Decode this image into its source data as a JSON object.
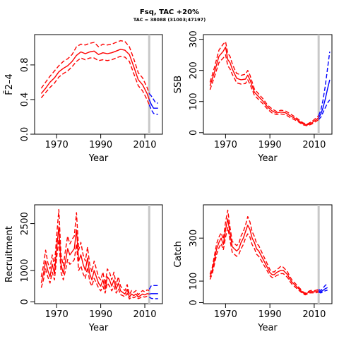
{
  "figure": {
    "title": "Fsq, TAC +20%",
    "subtitle": "TAC = 38088 (31003;47197)"
  },
  "colors": {
    "history": "#ff0000",
    "projection": "#0000ff",
    "vline": "#c8c8c8",
    "axis": "#000000"
  },
  "chart_data": [
    {
      "type": "line",
      "ylabel": "F̄2–4",
      "xlabel": "Year",
      "xlim": [
        1960,
        2018
      ],
      "ylim": [
        0,
        1.15
      ],
      "xticks": [
        1970,
        1990,
        2010
      ],
      "yticks": [
        0,
        0.4,
        0.8
      ],
      "ytick_labels": [
        "0.0",
        "0.4",
        "0.8"
      ],
      "vline": 2012,
      "history": {
        "x": [
          1963,
          1965,
          1967,
          1969,
          1971,
          1973,
          1975,
          1977,
          1979,
          1981,
          1983,
          1985,
          1987,
          1989,
          1991,
          1993,
          1995,
          1997,
          1999,
          2001,
          2003,
          2005,
          2007,
          2009,
          2011,
          2012
        ],
        "mid": [
          0.47,
          0.53,
          0.6,
          0.65,
          0.72,
          0.76,
          0.79,
          0.84,
          0.91,
          0.95,
          0.93,
          0.95,
          0.96,
          0.92,
          0.94,
          0.93,
          0.94,
          0.96,
          0.98,
          0.97,
          0.92,
          0.78,
          0.63,
          0.57,
          0.47,
          0.4
        ],
        "lo": [
          0.42,
          0.48,
          0.54,
          0.59,
          0.66,
          0.7,
          0.73,
          0.78,
          0.84,
          0.88,
          0.86,
          0.88,
          0.88,
          0.85,
          0.86,
          0.85,
          0.86,
          0.88,
          0.9,
          0.89,
          0.84,
          0.7,
          0.56,
          0.5,
          0.4,
          0.34
        ],
        "hi": [
          0.53,
          0.6,
          0.67,
          0.73,
          0.79,
          0.84,
          0.87,
          0.92,
          1.01,
          1.04,
          1.03,
          1.05,
          1.06,
          1.01,
          1.04,
          1.03,
          1.04,
          1.06,
          1.08,
          1.07,
          1.01,
          0.87,
          0.71,
          0.65,
          0.54,
          0.47
        ]
      },
      "projection": {
        "x": [
          2012,
          2013,
          2014,
          2015,
          2016
        ],
        "mid": [
          0.4,
          0.34,
          0.3,
          0.3,
          0.3
        ],
        "lo": [
          0.34,
          0.28,
          0.24,
          0.23,
          0.23
        ],
        "hi": [
          0.47,
          0.44,
          0.4,
          0.36,
          0.36
        ]
      }
    },
    {
      "type": "line",
      "ylabel": "SSB",
      "xlabel": "Year",
      "xlim": [
        1960,
        2018
      ],
      "ylim": [
        -5,
        315
      ],
      "xticks": [
        1970,
        1990,
        2010
      ],
      "yticks": [
        0,
        100,
        200,
        300
      ],
      "ytick_labels": [
        "0",
        "100",
        "200",
        "300"
      ],
      "vline": 2012,
      "history": {
        "x": [
          1963,
          1965,
          1967,
          1969,
          1970,
          1971,
          1972,
          1973,
          1974,
          1975,
          1976,
          1977,
          1979,
          1980,
          1981,
          1983,
          1985,
          1987,
          1989,
          1991,
          1993,
          1995,
          1997,
          1999,
          2001,
          2003,
          2005,
          2007,
          2009,
          2011,
          2012
        ],
        "mid": [
          150,
          195,
          245,
          262,
          275,
          235,
          225,
          205,
          190,
          175,
          172,
          170,
          172,
          185,
          170,
          130,
          115,
          100,
          82,
          70,
          63,
          66,
          64,
          55,
          47,
          38,
          28,
          25,
          32,
          42,
          48
        ],
        "lo": [
          138,
          180,
          225,
          240,
          250,
          215,
          205,
          188,
          175,
          160,
          158,
          156,
          158,
          170,
          156,
          120,
          106,
          92,
          75,
          63,
          58,
          60,
          58,
          49,
          42,
          34,
          25,
          22,
          28,
          37,
          42
        ],
        "hi": [
          162,
          210,
          265,
          285,
          292,
          255,
          245,
          222,
          205,
          190,
          188,
          184,
          188,
          200,
          185,
          140,
          124,
          108,
          88,
          76,
          68,
          72,
          70,
          61,
          52,
          42,
          31,
          28,
          36,
          48,
          55
        ]
      },
      "projection": {
        "x": [
          2012,
          2013,
          2014,
          2015,
          2016,
          2017
        ],
        "mid": [
          48,
          60,
          80,
          108,
          140,
          170
        ],
        "lo": [
          42,
          50,
          65,
          80,
          95,
          105
        ],
        "hi": [
          55,
          72,
          105,
          150,
          205,
          260
        ]
      }
    },
    {
      "type": "line",
      "ylabel": "Recruitment",
      "xlabel": "Year",
      "xlim": [
        1960,
        2018
      ],
      "ylim": [
        -60,
        3100
      ],
      "xticks": [
        1970,
        1990,
        2010
      ],
      "yticks": [
        0,
        1000,
        2500
      ],
      "ytick_labels": [
        "0",
        "1000",
        "2500"
      ],
      "vline": 2012,
      "history": {
        "x": [
          1963,
          1964,
          1965,
          1966,
          1967,
          1968,
          1969,
          1970,
          1971,
          1972,
          1973,
          1974,
          1975,
          1976,
          1977,
          1978,
          1979,
          1980,
          1981,
          1982,
          1983,
          1984,
          1985,
          1986,
          1987,
          1988,
          1989,
          1990,
          1991,
          1992,
          1993,
          1994,
          1995,
          1996,
          1997,
          1998,
          1999,
          2000,
          2001,
          2002,
          2003,
          2004,
          2005,
          2006,
          2007,
          2008,
          2009,
          2010,
          2011,
          2012
        ],
        "mid": [
          600,
          900,
          1300,
          1000,
          800,
          1200,
          900,
          1700,
          2400,
          1200,
          900,
          1300,
          1700,
          1500,
          1600,
          1700,
          2300,
          1300,
          1500,
          1200,
          1000,
          1400,
          900,
          700,
          1000,
          800,
          600,
          500,
          700,
          400,
          800,
          700,
          500,
          700,
          400,
          600,
          350,
          300,
          250,
          400,
          150,
          250,
          200,
          250,
          150,
          200,
          250,
          220,
          260,
          250
        ],
        "lo": [
          450,
          700,
          1050,
          800,
          600,
          950,
          700,
          1400,
          2000,
          950,
          700,
          1000,
          1350,
          1200,
          1250,
          1350,
          1850,
          1000,
          1150,
          900,
          750,
          1100,
          650,
          500,
          750,
          600,
          450,
          350,
          500,
          280,
          600,
          500,
          350,
          500,
          280,
          420,
          230,
          200,
          160,
          270,
          90,
          160,
          130,
          170,
          100,
          130,
          170,
          150,
          180,
          170
        ],
        "hi": [
          800,
          1150,
          1650,
          1250,
          1050,
          1500,
          1150,
          2100,
          2950,
          1500,
          1150,
          1650,
          2100,
          1850,
          2000,
          2100,
          2850,
          1650,
          1900,
          1500,
          1300,
          1750,
          1200,
          950,
          1300,
          1050,
          800,
          700,
          950,
          550,
          1050,
          950,
          700,
          950,
          550,
          800,
          500,
          420,
          360,
          550,
          230,
          360,
          300,
          360,
          220,
          300,
          360,
          320,
          380,
          360
        ]
      },
      "projection": {
        "x": [
          2012,
          2013,
          2014,
          2015,
          2016
        ],
        "mid": [
          250,
          260,
          260,
          260,
          260
        ],
        "lo": [
          150,
          110,
          100,
          100,
          100
        ],
        "hi": [
          400,
          520,
          520,
          520,
          520
        ]
      }
    },
    {
      "type": "line",
      "ylabel": "Catch",
      "xlabel": "Year",
      "xlim": [
        1960,
        2018
      ],
      "ylim": [
        -5,
        455
      ],
      "xticks": [
        1970,
        1990,
        2010
      ],
      "yticks": [
        0,
        100,
        300
      ],
      "ytick_labels": [
        "0",
        "100",
        "300"
      ],
      "vline": 2012,
      "history": {
        "x": [
          1963,
          1964,
          1965,
          1966,
          1967,
          1968,
          1969,
          1970,
          1971,
          1972,
          1973,
          1974,
          1975,
          1976,
          1977,
          1978,
          1979,
          1980,
          1981,
          1982,
          1983,
          1984,
          1985,
          1986,
          1987,
          1988,
          1989,
          1990,
          1991,
          1992,
          1993,
          1994,
          1995,
          1996,
          1997,
          1998,
          1999,
          2000,
          2001,
          2002,
          2003,
          2004,
          2005,
          2006,
          2007,
          2008,
          2009,
          2010,
          2011,
          2012
        ],
        "mid": [
          120,
          150,
          200,
          250,
          280,
          300,
          270,
          340,
          390,
          320,
          260,
          250,
          240,
          250,
          280,
          300,
          330,
          360,
          340,
          300,
          280,
          250,
          240,
          220,
          200,
          180,
          160,
          140,
          130,
          130,
          140,
          145,
          150,
          150,
          140,
          130,
          110,
          95,
          85,
          75,
          65,
          55,
          45,
          40,
          45,
          50,
          52,
          50,
          52,
          55
        ],
        "lo": [
          108,
          135,
          180,
          225,
          255,
          275,
          245,
          305,
          350,
          290,
          235,
          225,
          215,
          225,
          250,
          270,
          300,
          320,
          305,
          270,
          252,
          225,
          215,
          198,
          180,
          162,
          144,
          126,
          117,
          117,
          126,
          130,
          135,
          135,
          126,
          117,
          99,
          85,
          76,
          67,
          58,
          49,
          40,
          36,
          40,
          45,
          46,
          45,
          46,
          49
        ],
        "hi": [
          132,
          165,
          220,
          275,
          305,
          325,
          295,
          375,
          430,
          350,
          285,
          275,
          265,
          275,
          310,
          330,
          360,
          400,
          375,
          330,
          308,
          275,
          265,
          242,
          220,
          198,
          176,
          154,
          143,
          143,
          154,
          160,
          170,
          165,
          154,
          143,
          121,
          105,
          94,
          83,
          72,
          61,
          50,
          44,
          50,
          55,
          57,
          55,
          58,
          61
        ]
      },
      "projection": {
        "x": [
          2012,
          2013,
          2014,
          2015,
          2016
        ],
        "mid": [
          55,
          50,
          57,
          65,
          70
        ],
        "lo": [
          49,
          45,
          50,
          55,
          58
        ],
        "hi": [
          61,
          56,
          68,
          80,
          88
        ]
      }
    }
  ]
}
